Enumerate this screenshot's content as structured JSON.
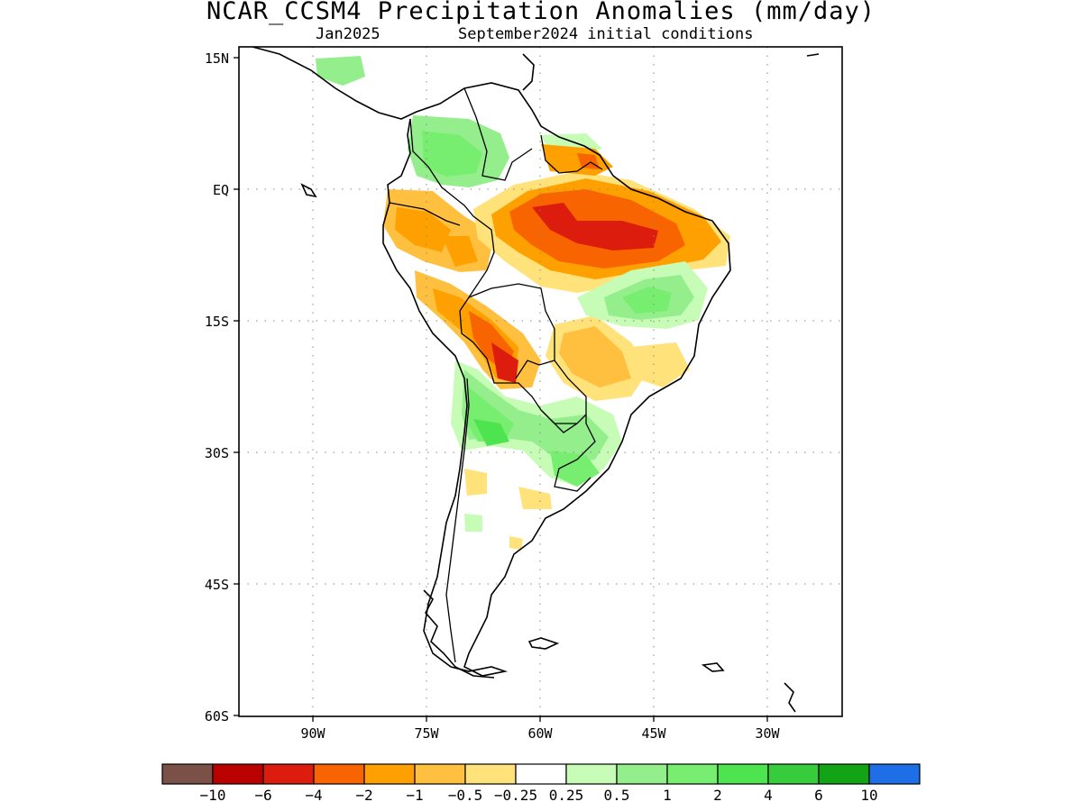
{
  "header": {
    "title": "NCAR_CCSM4 Precipitation Anomalies (mm/day)",
    "month": "Jan2025",
    "init": "September2024 initial conditions"
  },
  "axes": {
    "lat_labels": [
      "15N",
      "EQ",
      "15S",
      "30S",
      "45S",
      "60S"
    ],
    "lon_labels": [
      "90W",
      "75W",
      "60W",
      "45W",
      "30W"
    ]
  },
  "colorbar": {
    "colors": [
      "#7a5047",
      "#bb0000",
      "#dc1c0c",
      "#f86400",
      "#fea000",
      "#ffc040",
      "#ffe27a",
      "#ffffff",
      "#c6fcb6",
      "#94ee8c",
      "#78ee70",
      "#4ee450",
      "#36cc3c",
      "#12a414",
      "#1e6ee8"
    ],
    "labels": [
      "−10",
      "−6",
      "−4",
      "−2",
      "−1",
      "−0.5",
      "−0.25",
      "0.25",
      "0.5",
      "1",
      "2",
      "4",
      "6",
      "10"
    ]
  }
}
